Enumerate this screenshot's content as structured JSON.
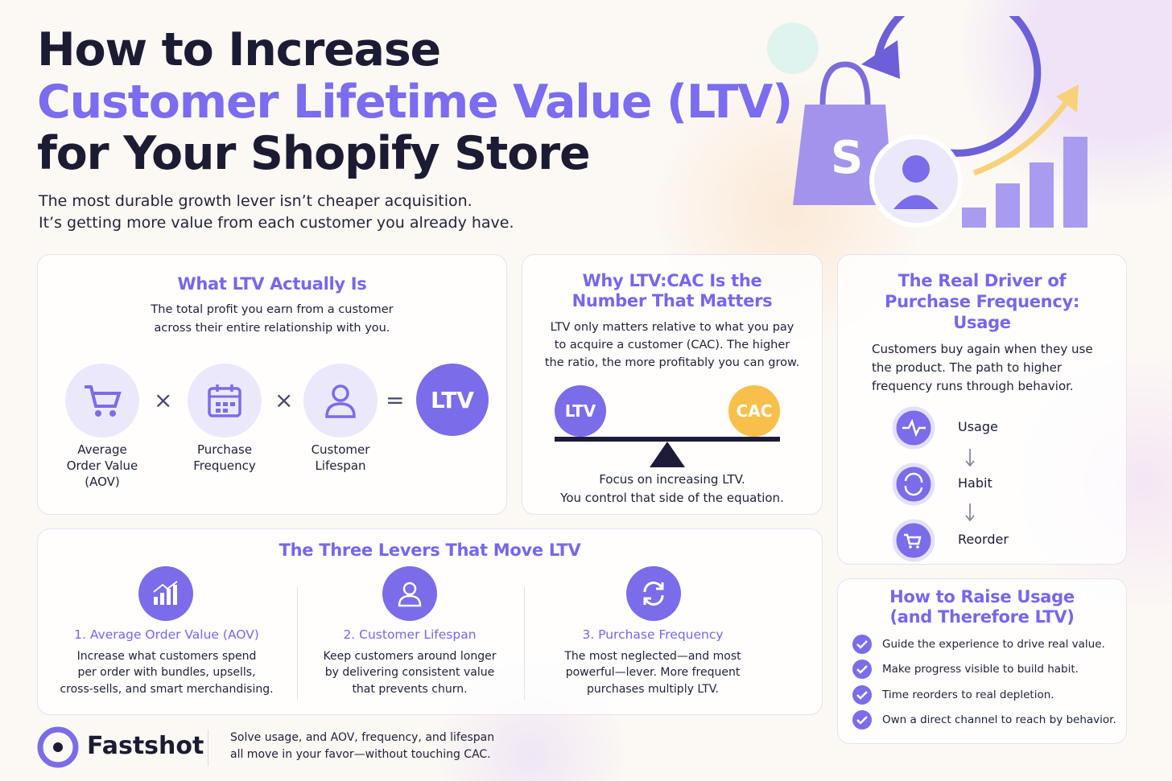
{
  "header": {
    "title_lines": [
      "How to Increase",
      "Customer Lifetime Value (LTV)",
      "for Your Shopify Store"
    ],
    "subtitle_lines": [
      "The most durable growth lever isn’t cheaper acquisition.",
      "It’s getting more value from each customer you already have."
    ]
  },
  "ltv_definition": {
    "title": "What LTV Actually Is",
    "body_lines": [
      "The total profit you earn from a customer",
      "across their entire relationship with you."
    ],
    "factors": [
      {
        "label_lines": [
          "Average",
          "Order Value",
          "(AOV)"
        ]
      },
      {
        "label_lines": [
          "Purchase",
          "Frequency"
        ]
      },
      {
        "label_lines": [
          "Customer",
          "Lifespan"
        ]
      }
    ],
    "operators": [
      "×",
      "×",
      "="
    ],
    "result": "LTV"
  },
  "ltv_cac": {
    "title_lines": [
      "Why LTV:CAC Is the",
      "Number That Matters"
    ],
    "body_lines": [
      "LTV only matters relative to what you pay",
      "to acquire a customer (CAC). The higher",
      "the ratio, the more profitably you can grow."
    ],
    "left": "LTV",
    "right": "CAC",
    "footer_lines": [
      "Focus on increasing LTV.",
      "You control that side of the equation."
    ]
  },
  "real_driver": {
    "title_lines": [
      "The Real Driver of",
      "Purchase Frequency:",
      "Usage"
    ],
    "body_lines": [
      "Customers buy again when they use",
      "the product. The path to higher",
      "frequency runs through behavior."
    ],
    "steps": [
      "Usage",
      "Habit",
      "Reorder"
    ]
  },
  "levers": {
    "title": "The Three Levers That Move LTV",
    "items": [
      {
        "title": "1. Average Order Value (AOV)",
        "body_lines": [
          "Increase what customers spend",
          "per order with bundles, upsells,",
          "cross-sells, and smart merchandising."
        ]
      },
      {
        "title": "2. Customer Lifespan",
        "body_lines": [
          "Keep customers around longer",
          "by delivering consistent value",
          "that prevents churn."
        ]
      },
      {
        "title": "3. Purchase Frequency",
        "body_lines": [
          "The most neglected—and most",
          "powerful—lever. More frequent",
          "purchases multiply LTV."
        ]
      }
    ]
  },
  "raise_usage": {
    "title_lines": [
      "How to Raise Usage",
      "(and Therefore LTV)"
    ],
    "items": [
      "Guide the experience to drive real value.",
      "Make progress visible to build habit.",
      "Time reorders to real depletion.",
      "Own a direct channel to reach by behavior."
    ]
  },
  "footer": {
    "brand": "Fastshot",
    "text_lines": [
      "Solve usage, and AOV, frequency, and lifespan",
      "all move in your favor—without touching CAC."
    ]
  }
}
